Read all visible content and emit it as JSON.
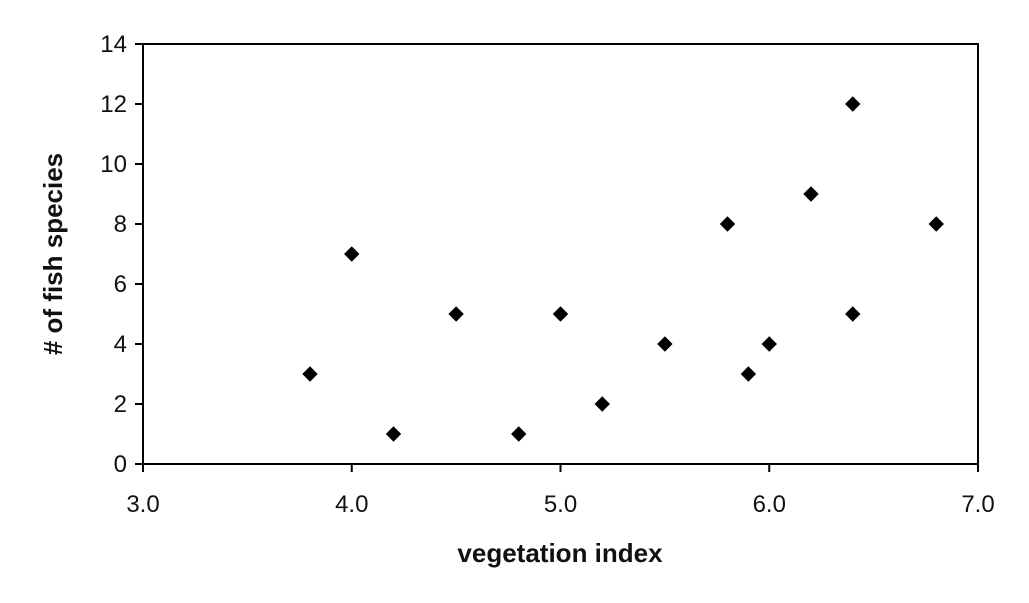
{
  "chart_data": {
    "type": "scatter",
    "title": "",
    "xlabel": "vegetation index",
    "ylabel": "# of fish species",
    "xlim": [
      3.0,
      7.0
    ],
    "ylim": [
      0,
      14
    ],
    "x_ticks": [
      3.0,
      4.0,
      5.0,
      6.0,
      7.0
    ],
    "x_tick_labels": [
      "3.0",
      "4.0",
      "5.0",
      "6.0",
      "7.0"
    ],
    "y_ticks": [
      0,
      2,
      4,
      6,
      8,
      10,
      12,
      14
    ],
    "y_tick_labels": [
      "0",
      "2",
      "4",
      "6",
      "8",
      "10",
      "12",
      "14"
    ],
    "grid": false,
    "legend": "none",
    "marker": "diamond",
    "marker_color": "#000000",
    "series": [
      {
        "points": [
          {
            "x": 3.8,
            "y": 3
          },
          {
            "x": 4.0,
            "y": 7
          },
          {
            "x": 4.2,
            "y": 1
          },
          {
            "x": 4.5,
            "y": 5
          },
          {
            "x": 4.8,
            "y": 1
          },
          {
            "x": 5.0,
            "y": 5
          },
          {
            "x": 5.2,
            "y": 2
          },
          {
            "x": 5.5,
            "y": 4
          },
          {
            "x": 5.8,
            "y": 8
          },
          {
            "x": 5.9,
            "y": 3
          },
          {
            "x": 6.0,
            "y": 4
          },
          {
            "x": 6.2,
            "y": 9
          },
          {
            "x": 6.4,
            "y": 12
          },
          {
            "x": 6.4,
            "y": 5
          },
          {
            "x": 6.8,
            "y": 8
          }
        ]
      }
    ]
  }
}
